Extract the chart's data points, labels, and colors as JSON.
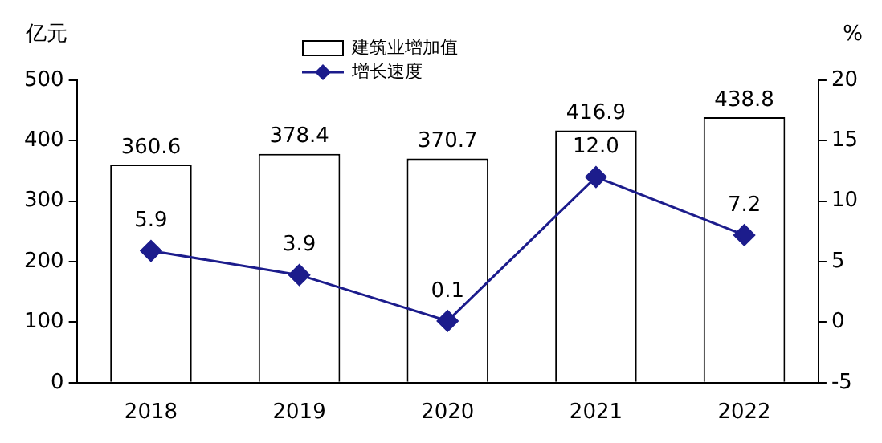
{
  "chart_data": {
    "type": "bar",
    "categories": [
      "2018",
      "2019",
      "2020",
      "2021",
      "2022"
    ],
    "ylabel": "亿元",
    "y2label": "%",
    "ylim": [
      0,
      500
    ],
    "yticks": [
      0,
      100,
      200,
      300,
      400,
      500
    ],
    "y2lim": [
      -5,
      20
    ],
    "y2ticks": [
      -5,
      0,
      5,
      10,
      15,
      20
    ],
    "grid": false,
    "legend": "top",
    "series": [
      {
        "name": "建筑业增加值",
        "color": "#ffffff",
        "values": [
          360.6,
          378.4,
          370.7,
          416.9,
          438.8
        ],
        "value_labels": [
          "360.6",
          "378.4",
          "370.7",
          "416.9",
          "438.8"
        ]
      },
      {
        "name": "增长速度",
        "type": "line",
        "axis": "y2",
        "color": "#1c1c8c",
        "marker": "diamond",
        "values": [
          5.9,
          3.9,
          0.1,
          12.0,
          7.2
        ],
        "value_labels": [
          "5.9",
          "3.9",
          "0.1",
          "12.0",
          "7.2"
        ]
      }
    ]
  }
}
